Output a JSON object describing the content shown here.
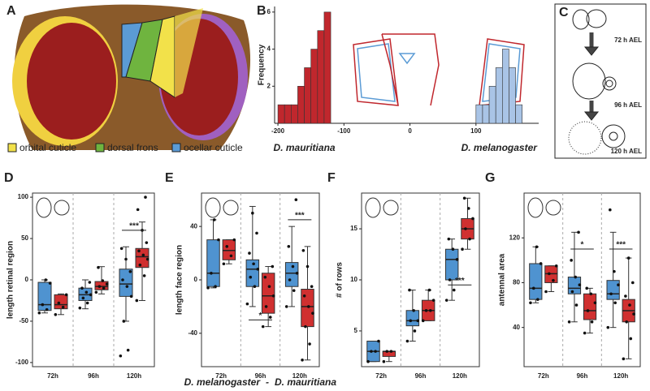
{
  "panel_labels": [
    "A",
    "B",
    "C",
    "D",
    "E",
    "F",
    "G"
  ],
  "cuticle_legend": [
    {
      "label": "orbital cuticle",
      "color": "#f2e14a"
    },
    {
      "label": "dorsal frons",
      "color": "#6fb43f"
    },
    {
      "label": "ocellar cuticle",
      "color": "#5b9bd5"
    }
  ],
  "stages": [
    "72 h AEL",
    "96 h AEL",
    "120 h AEL"
  ],
  "legend_separator": "-",
  "chart_data": [
    {
      "type": "histogram",
      "ylabel": "Frequency",
      "xlim": [
        -205,
        195
      ],
      "xticks": [
        -200,
        -100,
        0,
        100
      ],
      "ylim": [
        0,
        6.3
      ],
      "yticks": [
        2,
        4,
        6
      ],
      "series": [
        {
          "name": "D. mauritiana",
          "color": "#c0272d",
          "bins": [
            -200,
            -190,
            -180,
            -170,
            -160,
            -150,
            -140,
            -130,
            -120
          ],
          "counts": [
            1,
            1,
            1,
            2,
            3,
            4,
            5,
            6
          ]
        },
        {
          "name": "D. melanogaster",
          "color": "#a9c4e6",
          "bins": [
            100,
            110,
            120,
            130,
            140,
            150,
            160,
            170
          ],
          "counts": [
            1,
            1,
            2,
            3,
            4,
            3,
            1
          ]
        }
      ]
    },
    {
      "type": "box",
      "ylabel": "length retinal region",
      "categories": [
        "72h",
        "96h",
        "120h"
      ],
      "ylim": [
        -105,
        105
      ],
      "yticks": [
        -100,
        -50,
        0,
        50,
        100
      ],
      "series": [
        {
          "name": "D. melanogaster",
          "color": "#4f93d0",
          "boxes": [
            {
              "min": -40,
              "q1": -37,
              "median": -30,
              "q3": -3,
              "max": 0,
              "points": [
                -40,
                -36,
                -30,
                -4,
                0
              ]
            },
            {
              "min": -35,
              "q1": -25,
              "median": -18,
              "q3": -10,
              "max": 0,
              "points": [
                -34,
                -28,
                -22,
                -18,
                -15,
                -10,
                -3
              ]
            },
            {
              "min": -50,
              "q1": -20,
              "median": -5,
              "q3": 13,
              "max": 40,
              "points": [
                -92,
                -85,
                -50,
                -20,
                -8,
                0,
                10,
                25,
                38
              ]
            }
          ]
        },
        {
          "name": "D. mauritiana",
          "color": "#d03030",
          "boxes": [
            {
              "min": -42,
              "q1": -35,
              "median": -30,
              "q3": -18,
              "max": -17,
              "points": [
                -42,
                -33,
                -28,
                -18
              ]
            },
            {
              "min": -17,
              "q1": -12,
              "median": -8,
              "q3": -2,
              "max": 16,
              "points": [
                -15,
                -10,
                -8,
                -5,
                -1,
                15
              ]
            },
            {
              "min": -25,
              "q1": 15,
              "median": 28,
              "q3": 38,
              "max": 70,
              "points": [
                -25,
                5,
                18,
                25,
                30,
                35,
                45,
                60,
                85,
                100
              ]
            }
          ]
        }
      ],
      "annotations": [
        {
          "text": "***",
          "category": 2,
          "y": 60
        }
      ]
    },
    {
      "type": "box",
      "ylabel": "length face region",
      "categories": [
        "72h",
        "96h",
        "120h"
      ],
      "ylim": [
        -65,
        65
      ],
      "yticks": [
        -40,
        0,
        40
      ],
      "series": [
        {
          "name": "D. melanogaster",
          "color": "#4f93d0",
          "boxes": [
            {
              "min": -6,
              "q1": -5,
              "median": 5,
              "q3": 30,
              "max": 45,
              "points": [
                -6,
                -5,
                5,
                30,
                45
              ]
            },
            {
              "min": -20,
              "q1": -5,
              "median": 8,
              "q3": 15,
              "max": 55,
              "points": [
                -18,
                -5,
                2,
                8,
                12,
                20,
                35,
                50
              ]
            },
            {
              "min": -20,
              "q1": -5,
              "median": 5,
              "q3": 13,
              "max": 40,
              "points": [
                -20,
                -8,
                0,
                5,
                10,
                25,
                60
              ]
            }
          ]
        },
        {
          "name": "D. mauritiana",
          "color": "#d03030",
          "boxes": [
            {
              "min": 12,
              "q1": 15,
              "median": 22,
              "q3": 30,
              "max": 30,
              "points": [
                12,
                18,
                25,
                30
              ]
            },
            {
              "min": -35,
              "q1": -25,
              "median": -12,
              "q3": 5,
              "max": 10,
              "points": [
                -35,
                -28,
                -20,
                -12,
                -5,
                2,
                10
              ]
            },
            {
              "min": -60,
              "q1": -35,
              "median": -20,
              "q3": -7,
              "max": 25,
              "points": [
                -60,
                -48,
                -35,
                -25,
                -20,
                -12,
                -5,
                10,
                22
              ]
            }
          ]
        }
      ],
      "annotations": [
        {
          "text": "*",
          "category": 1,
          "y": -30
        },
        {
          "text": "***",
          "category": 2,
          "y": 45
        }
      ]
    },
    {
      "type": "box",
      "ylabel": "# of rows",
      "categories": [
        "72h",
        "96h",
        "120h"
      ],
      "ylim": [
        1.5,
        18.5
      ],
      "yticks": [
        5,
        10,
        15
      ],
      "series": [
        {
          "name": "D. melanogaster",
          "color": "#4f93d0",
          "boxes": [
            {
              "min": 2,
              "q1": 2,
              "median": 3,
              "q3": 4,
              "max": 4,
              "points": [
                2,
                3,
                3,
                4
              ]
            },
            {
              "min": 4,
              "q1": 5.5,
              "median": 6,
              "q3": 7,
              "max": 9,
              "points": [
                4,
                5,
                6,
                6,
                7,
                9
              ]
            },
            {
              "min": 8,
              "q1": 10,
              "median": 12,
              "q3": 13,
              "max": 14,
              "points": [
                8,
                9,
                10,
                12,
                13,
                14
              ]
            }
          ]
        },
        {
          "name": "D. mauritiana",
          "color": "#d03030",
          "boxes": [
            {
              "min": 2,
              "q1": 2.5,
              "median": 3,
              "q3": 3,
              "max": 3,
              "points": [
                2,
                3,
                3
              ]
            },
            {
              "min": 6,
              "q1": 6,
              "median": 7,
              "q3": 8,
              "max": 9,
              "points": [
                6,
                7,
                7,
                8,
                9
              ]
            },
            {
              "min": 13,
              "q1": 14,
              "median": 15,
              "q3": 16,
              "max": 18,
              "points": [
                13,
                14,
                15,
                16,
                17,
                18
              ]
            }
          ]
        }
      ],
      "annotations": [
        {
          "text": "***",
          "category": 2,
          "y": 9.5
        }
      ]
    },
    {
      "type": "box",
      "ylabel": "antennal area",
      "categories": [
        "72h",
        "96h",
        "120h"
      ],
      "ylim": [
        5,
        160
      ],
      "yticks": [
        40,
        80,
        120
      ],
      "series": [
        {
          "name": "D. melanogaster",
          "color": "#4f93d0",
          "boxes": [
            {
              "min": 62,
              "q1": 65,
              "median": 75,
              "q3": 97,
              "max": 112,
              "points": [
                62,
                65,
                75,
                97,
                112
              ]
            },
            {
              "min": 45,
              "q1": 70,
              "median": 75,
              "q3": 85,
              "max": 125,
              "points": [
                45,
                60,
                72,
                78,
                85,
                100,
                125
              ]
            },
            {
              "min": 40,
              "q1": 65,
              "median": 70,
              "q3": 82,
              "max": 125,
              "points": [
                40,
                62,
                70,
                78,
                90,
                145
              ]
            }
          ]
        },
        {
          "name": "D. mauritiana",
          "color": "#d03030",
          "boxes": [
            {
              "min": 72,
              "q1": 80,
              "median": 88,
              "q3": 95,
              "max": 95,
              "points": [
                72,
                82,
                88,
                95
              ]
            },
            {
              "min": 35,
              "q1": 47,
              "median": 55,
              "q3": 70,
              "max": 75,
              "points": [
                35,
                45,
                55,
                62,
                70,
                75
              ]
            },
            {
              "min": 12,
              "q1": 45,
              "median": 55,
              "q3": 65,
              "max": 102,
              "points": [
                12,
                30,
                45,
                52,
                60,
                68,
                80,
                102
              ]
            }
          ]
        }
      ],
      "annotations": [
        {
          "text": "*",
          "category": 1,
          "y": 110
        },
        {
          "text": "***",
          "category": 2,
          "y": 110
        }
      ]
    }
  ]
}
